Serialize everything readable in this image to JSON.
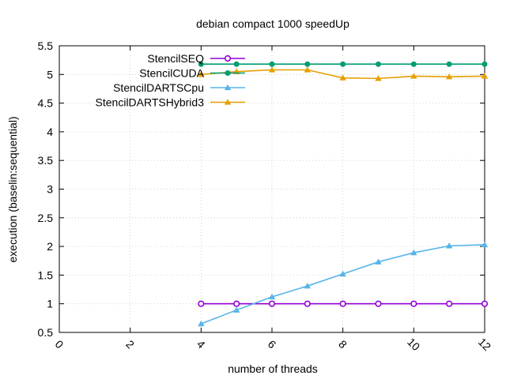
{
  "chart_data": {
    "type": "line",
    "title": "debian compact 1000 speedUp",
    "xlabel": "number of threads",
    "ylabel": "execution (baselin:sequential)",
    "xlim": [
      0,
      12
    ],
    "ylim": [
      0.5,
      5.5
    ],
    "xticks": [
      0,
      2,
      4,
      6,
      8,
      10,
      12
    ],
    "yticks": [
      0.5,
      1,
      1.5,
      2,
      2.5,
      3,
      3.5,
      4,
      4.5,
      5,
      5.5
    ],
    "xtick_labels": [
      "0",
      "2",
      "4",
      "6",
      "8",
      "10",
      "12"
    ],
    "ytick_labels": [
      "0.5",
      "1",
      "1.5",
      "2",
      "2.5",
      "3",
      "3.5",
      "4",
      "4.5",
      "5",
      "5.5"
    ],
    "grid": true,
    "legend_position": "top-left",
    "series": [
      {
        "name": "StencilSEQ",
        "color": "#9400d3",
        "marker": "circle-open",
        "x": [
          4,
          5,
          6,
          7,
          8,
          9,
          10,
          11,
          12
        ],
        "y": [
          1,
          1,
          1,
          1,
          1,
          1,
          1,
          1,
          1
        ]
      },
      {
        "name": "StencilCUDA",
        "color": "#009e73",
        "marker": "circle",
        "x": [
          4,
          5,
          6,
          7,
          8,
          9,
          10,
          11,
          12
        ],
        "y": [
          5.18,
          5.18,
          5.18,
          5.18,
          5.18,
          5.18,
          5.18,
          5.18,
          5.18
        ]
      },
      {
        "name": "StencilDARTSCpu",
        "color": "#56b4e9",
        "marker": "triangle",
        "x": [
          4,
          5,
          6,
          7,
          8,
          9,
          10,
          11,
          12
        ],
        "y": [
          0.65,
          0.89,
          1.12,
          1.31,
          1.52,
          1.73,
          1.89,
          2.01,
          2.03
        ]
      },
      {
        "name": "StencilDARTSHybrid3",
        "color": "#e69f00",
        "marker": "triangle",
        "x": [
          4,
          5,
          6,
          7,
          8,
          9,
          10,
          11,
          12
        ],
        "y": [
          5.0,
          5.05,
          5.08,
          5.08,
          4.94,
          4.93,
          4.97,
          4.96,
          4.97
        ]
      }
    ]
  }
}
